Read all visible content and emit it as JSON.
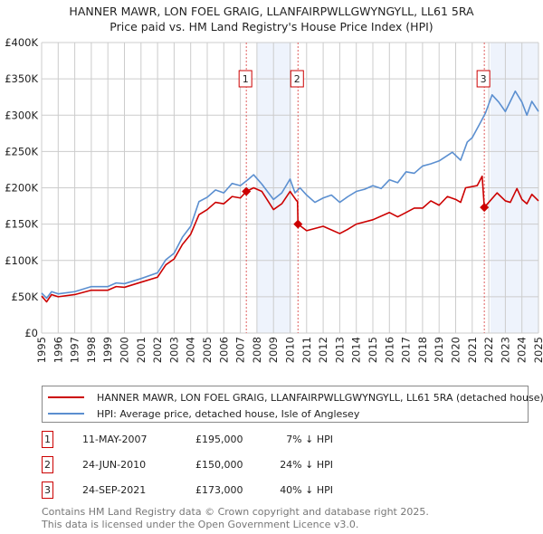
{
  "title": "HANNER MAWR, LON FOEL GRAIG, LLANFAIRPWLLGWYNGYLL, LL61 5RA",
  "subtitle": "Price paid vs. HM Land Registry's House Price Index (HPI)",
  "legend": {
    "property": "HANNER MAWR, LON FOEL GRAIG, LLANFAIRPWLLGWYNGYLL, LL61 5RA (detached house)",
    "hpi": "HPI: Average price, detached house, Isle of Anglesey"
  },
  "sales": [
    {
      "num": "1",
      "date": "11-MAY-2007",
      "price": "£195,000",
      "hpi": "7% ↓ HPI"
    },
    {
      "num": "2",
      "date": "24-JUN-2010",
      "price": "£150,000",
      "hpi": "24% ↓ HPI"
    },
    {
      "num": "3",
      "date": "24-SEP-2021",
      "price": "£173,000",
      "hpi": "40% ↓ HPI"
    }
  ],
  "footer": {
    "line1": "Contains HM Land Registry data © Crown copyright and database right 2025.",
    "line2": "This data is licensed under the Open Government Licence v3.0."
  },
  "colors": {
    "property": "#cc0000",
    "hpi": "#5b8fd0",
    "shade": "#eef3fc"
  },
  "chart_data": {
    "type": "line",
    "xlim": [
      1995,
      2025
    ],
    "ylim": [
      0,
      400000
    ],
    "yticks": [
      0,
      50000,
      100000,
      150000,
      200000,
      250000,
      300000,
      350000,
      400000
    ],
    "ytick_labels": [
      "£0",
      "£50K",
      "£100K",
      "£150K",
      "£200K",
      "£250K",
      "£300K",
      "£350K",
      "£400K"
    ],
    "xticks": [
      "1995",
      "1996",
      "1997",
      "1998",
      "1999",
      "2000",
      "2001",
      "2002",
      "2003",
      "2004",
      "2005",
      "2006",
      "2007",
      "2008",
      "2009",
      "2010",
      "2011",
      "2012",
      "2013",
      "2014",
      "2015",
      "2016",
      "2017",
      "2018",
      "2019",
      "2020",
      "2021",
      "2022",
      "2023",
      "2024",
      "2025"
    ],
    "grid": true,
    "shaded_ranges": [
      [
        2008.0,
        2010.1
      ],
      [
        2022.1,
        2025
      ]
    ],
    "sale_points": [
      {
        "label": "1",
        "x": 2007.36,
        "y": 195000
      },
      {
        "label": "2",
        "x": 2010.48,
        "y": 150000
      },
      {
        "label": "3",
        "x": 2021.73,
        "y": 173000
      }
    ],
    "series": [
      {
        "name": "HPI: Average price, detached house, Isle of Anglesey",
        "points": [
          [
            1995,
            55000
          ],
          [
            1995.3,
            48000
          ],
          [
            1995.6,
            57000
          ],
          [
            1996,
            54000
          ],
          [
            1997,
            57000
          ],
          [
            1998,
            64000
          ],
          [
            1999,
            64000
          ],
          [
            1999.5,
            69000
          ],
          [
            2000,
            68000
          ],
          [
            2001,
            75000
          ],
          [
            2002,
            83000
          ],
          [
            2002.5,
            101000
          ],
          [
            2003,
            110000
          ],
          [
            2003.5,
            132000
          ],
          [
            2004,
            147000
          ],
          [
            2004.5,
            181000
          ],
          [
            2005,
            187000
          ],
          [
            2005.5,
            197000
          ],
          [
            2006,
            193000
          ],
          [
            2006.5,
            206000
          ],
          [
            2007,
            203000
          ],
          [
            2007.5,
            212000
          ],
          [
            2007.8,
            218000
          ],
          [
            2008.3,
            205000
          ],
          [
            2009,
            184000
          ],
          [
            2009.5,
            193000
          ],
          [
            2010,
            212000
          ],
          [
            2010.3,
            193000
          ],
          [
            2010.6,
            200000
          ],
          [
            2011,
            190000
          ],
          [
            2011.5,
            180000
          ],
          [
            2012,
            186000
          ],
          [
            2012.5,
            190000
          ],
          [
            2013,
            180000
          ],
          [
            2013.5,
            188000
          ],
          [
            2014,
            195000
          ],
          [
            2014.5,
            198000
          ],
          [
            2015,
            203000
          ],
          [
            2015.5,
            199000
          ],
          [
            2016,
            211000
          ],
          [
            2016.5,
            207000
          ],
          [
            2017,
            222000
          ],
          [
            2017.5,
            220000
          ],
          [
            2018,
            230000
          ],
          [
            2018.5,
            233000
          ],
          [
            2019,
            237000
          ],
          [
            2019.8,
            249000
          ],
          [
            2020.3,
            238000
          ],
          [
            2020.7,
            263000
          ],
          [
            2021,
            269000
          ],
          [
            2021.5,
            290000
          ],
          [
            2021.8,
            303000
          ],
          [
            2022.2,
            328000
          ],
          [
            2022.6,
            318000
          ],
          [
            2023,
            305000
          ],
          [
            2023.6,
            333000
          ],
          [
            2024,
            318000
          ],
          [
            2024.3,
            300000
          ],
          [
            2024.6,
            319000
          ],
          [
            2025,
            305000
          ]
        ]
      },
      {
        "name": "HANNER MAWR, LON FOEL GRAIG, LLANFAIRPWLLGWYNGYLL, LL61 5RA (detached house)",
        "points": [
          [
            1995,
            51000
          ],
          [
            1995.3,
            43000
          ],
          [
            1995.6,
            53000
          ],
          [
            1996,
            50000
          ],
          [
            1997,
            53000
          ],
          [
            1998,
            59000
          ],
          [
            1999,
            59000
          ],
          [
            1999.5,
            64000
          ],
          [
            2000,
            63000
          ],
          [
            2001,
            70000
          ],
          [
            2002,
            77000
          ],
          [
            2002.5,
            94000
          ],
          [
            2003,
            102000
          ],
          [
            2003.5,
            122000
          ],
          [
            2004,
            136000
          ],
          [
            2004.5,
            163000
          ],
          [
            2005,
            170000
          ],
          [
            2005.5,
            180000
          ],
          [
            2006,
            178000
          ],
          [
            2006.5,
            188000
          ],
          [
            2007,
            186000
          ],
          [
            2007.36,
            195000
          ],
          [
            2007.8,
            200000
          ],
          [
            2008.3,
            195000
          ],
          [
            2009,
            170000
          ],
          [
            2009.5,
            178000
          ],
          [
            2010,
            195000
          ],
          [
            2010.4,
            182000
          ],
          [
            2010.45,
            182000
          ],
          [
            2010.48,
            150000
          ],
          [
            2011,
            141000
          ],
          [
            2012,
            147000
          ],
          [
            2013,
            137000
          ],
          [
            2013.5,
            143000
          ],
          [
            2014,
            150000
          ],
          [
            2015,
            156000
          ],
          [
            2016,
            166000
          ],
          [
            2016.5,
            160000
          ],
          [
            2017,
            166000
          ],
          [
            2017.5,
            172000
          ],
          [
            2018,
            172000
          ],
          [
            2018.5,
            182000
          ],
          [
            2019,
            176000
          ],
          [
            2019.5,
            188000
          ],
          [
            2020,
            184000
          ],
          [
            2020.3,
            180000
          ],
          [
            2020.6,
            200000
          ],
          [
            2021.3,
            203000
          ],
          [
            2021.6,
            216000
          ],
          [
            2021.73,
            173000
          ],
          [
            2022,
            180000
          ],
          [
            2022.5,
            193000
          ],
          [
            2023,
            182000
          ],
          [
            2023.3,
            180000
          ],
          [
            2023.7,
            199000
          ],
          [
            2024,
            184000
          ],
          [
            2024.3,
            178000
          ],
          [
            2024.6,
            191000
          ],
          [
            2025,
            182000
          ]
        ]
      }
    ]
  }
}
